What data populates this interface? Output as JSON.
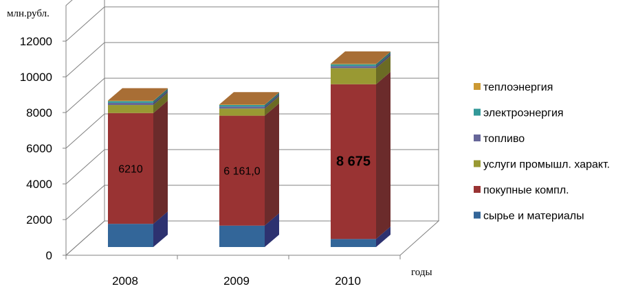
{
  "chart_data": {
    "type": "bar",
    "stacked": true,
    "three_d": true,
    "y_unit_label": "млн.рубл.",
    "x_unit_label": "годы",
    "categories": [
      "2008",
      "2009",
      "2010"
    ],
    "ylim": [
      0,
      14000
    ],
    "yticks": [
      "0",
      "2000",
      "4000",
      "6000",
      "8000",
      "10000",
      "12000"
    ],
    "grid": true,
    "legend_position": "right",
    "series": [
      {
        "name": "сырье и материалы",
        "values": [
          1300,
          1200,
          450
        ],
        "color": "#336699",
        "side": "#2d3270",
        "top": "#3d5aa0"
      },
      {
        "name": "покупные компл.",
        "values": [
          6210,
          6161,
          8675
        ],
        "color": "#993333",
        "side": "#6b2b2b",
        "top": "#b04848"
      },
      {
        "name": "услуги промышл. характ.",
        "values": [
          450,
          400,
          900
        ],
        "color": "#999933",
        "side": "#6b6b24",
        "top": "#b0b040"
      },
      {
        "name": "топливо",
        "values": [
          120,
          110,
          120
        ],
        "color": "#666699",
        "side": "#4a4a70",
        "top": "#7a7ab0"
      },
      {
        "name": "электроэнергия",
        "values": [
          100,
          90,
          100
        ],
        "color": "#339999",
        "side": "#267070",
        "top": "#44b0b0"
      },
      {
        "name": "теплоэнергия",
        "values": [
          30,
          30,
          30
        ],
        "color": "#cc9933",
        "side": "#996633",
        "top": "#a86e35"
      }
    ],
    "data_labels": [
      {
        "category": "2008",
        "series": "покупные компл.",
        "text": "6210",
        "bold": false
      },
      {
        "category": "2009",
        "series": "покупные компл.",
        "text": "6 161,0",
        "bold": false
      },
      {
        "category": "2010",
        "series": "покупные компл.",
        "text": "8 675",
        "bold": true
      }
    ]
  }
}
